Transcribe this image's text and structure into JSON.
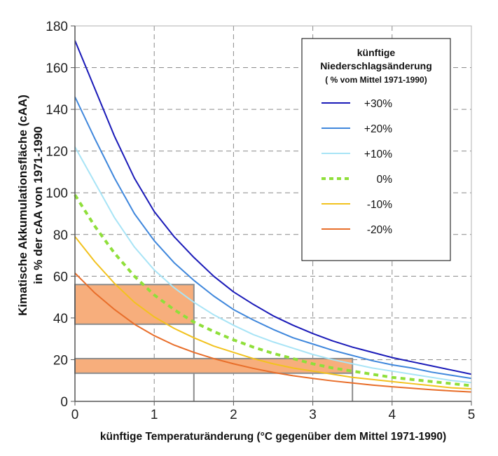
{
  "chart_data": {
    "type": "line",
    "xlabel": "künftige Temperaturänderung (°C gegenüber dem Mittel 1971-1990)",
    "ylabel_line1": "Kimatische Akkumulationsfläche (cAA)",
    "ylabel_line2": "in % der  cAA von 1971-1990",
    "xlim": [
      0,
      5
    ],
    "ylim": [
      0,
      180
    ],
    "x_ticks": [
      "0",
      "1",
      "2",
      "3",
      "4",
      "5"
    ],
    "y_ticks": [
      "0",
      "20",
      "40",
      "60",
      "80",
      "100",
      "120",
      "140",
      "160",
      "180"
    ],
    "grid": true,
    "legend": {
      "title_line1": "künftige",
      "title_line2": "Niederschlagsänderung",
      "subtitle": "( % vom Mittel 1971-1990)",
      "placement": "top-right"
    },
    "x": [
      0,
      0.25,
      0.5,
      0.75,
      1,
      1.25,
      1.5,
      1.75,
      2,
      2.25,
      2.5,
      2.75,
      3,
      3.25,
      3.5,
      3.75,
      4,
      4.25,
      4.5,
      4.75,
      5
    ],
    "series": [
      {
        "name": "+30%",
        "color": "#1a1ab8",
        "style": "solid",
        "values": [
          173,
          150,
          127,
          107,
          91,
          79,
          69,
          60,
          52.5,
          46.5,
          41,
          36.5,
          32.5,
          29,
          26,
          23.5,
          21,
          19,
          17,
          15,
          13
        ]
      },
      {
        "name": "+20%",
        "color": "#3f87dc",
        "style": "solid",
        "values": [
          146,
          126,
          107,
          90,
          77,
          66.5,
          58,
          50.5,
          44,
          39,
          34.5,
          30.5,
          27.5,
          24.5,
          22,
          19.5,
          17.5,
          16,
          14,
          12.5,
          11
        ]
      },
      {
        "name": "+10%",
        "color": "#a8e4f6",
        "style": "solid",
        "values": [
          122,
          105,
          88,
          74,
          63,
          54.5,
          47.5,
          41.5,
          36.5,
          32,
          28.5,
          25.5,
          22.5,
          20,
          18,
          16,
          14.5,
          13,
          11.5,
          10,
          9
        ]
      },
      {
        "name": "0%",
        "color": "#8fdf3a",
        "style": "dotted",
        "values": [
          99,
          84,
          71,
          60,
          51,
          44,
          38,
          33.5,
          29.5,
          26,
          23,
          20.5,
          18,
          16,
          14.5,
          13,
          11.5,
          10.5,
          9.5,
          8.5,
          7.5
        ]
      },
      {
        "name": "-10%",
        "color": "#f2c21e",
        "style": "solid",
        "values": [
          79,
          67,
          56.5,
          47.5,
          40.5,
          35,
          30.5,
          26.5,
          23.5,
          20.5,
          18,
          16,
          14.5,
          13,
          11.5,
          10.5,
          9.5,
          8.5,
          7.5,
          6.5,
          6
        ]
      },
      {
        "name": "-20%",
        "color": "#e86e2a",
        "style": "solid",
        "values": [
          61.5,
          52,
          44,
          37,
          31.5,
          27,
          23.5,
          20.5,
          18,
          15.8,
          13.9,
          12.3,
          11,
          9.8,
          8.8,
          7.8,
          7,
          6.3,
          5.6,
          5,
          4.5
        ]
      }
    ],
    "highlight_bands": [
      {
        "y_from": 37,
        "y_to": 56,
        "x_end": 1.5
      },
      {
        "y_from": 13.5,
        "y_to": 20.5,
        "x_end": 3.5
      }
    ],
    "highlight_color": "#f7ae7c",
    "highlight_border": "#8c8c8c"
  }
}
